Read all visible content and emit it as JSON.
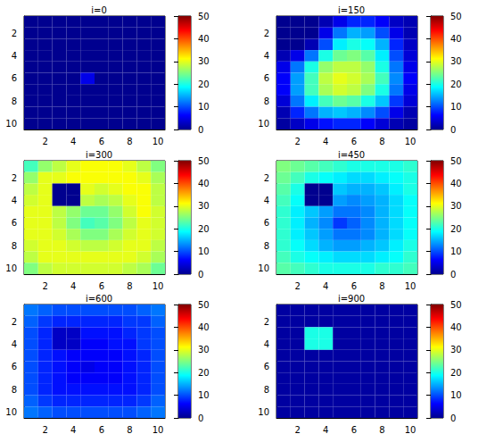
{
  "chart_data": [
    {
      "type": "heatmap",
      "title": "i=0",
      "xlim": [
        0.5,
        10.5
      ],
      "ylim": [
        0.5,
        10.5
      ],
      "xticks": [
        2,
        4,
        6,
        8,
        10
      ],
      "yticks": [
        2,
        4,
        6,
        8,
        10
      ],
      "colorbar": {
        "range": [
          0,
          50
        ],
        "ticks": [
          0,
          10,
          20,
          30,
          40,
          50
        ]
      },
      "cells": [
        [
          0,
          0,
          0,
          0,
          0,
          0,
          0,
          0,
          0,
          0
        ],
        [
          0,
          0,
          0,
          0,
          0,
          0,
          0,
          0,
          0,
          0
        ],
        [
          0,
          0,
          0,
          0,
          0,
          0,
          0,
          0,
          0,
          0
        ],
        [
          0,
          0,
          0,
          0,
          0,
          0,
          0,
          0,
          0,
          0
        ],
        [
          0,
          0,
          0,
          0,
          0,
          0,
          0,
          0,
          0,
          0
        ],
        [
          0,
          0,
          0,
          0,
          5,
          0,
          0,
          0,
          0,
          0
        ],
        [
          0,
          0,
          0,
          0,
          0,
          0,
          0,
          0,
          0,
          0
        ],
        [
          0,
          0,
          0,
          0,
          0,
          0,
          0,
          0,
          0,
          0
        ],
        [
          0,
          0,
          0,
          0,
          0,
          0,
          0,
          0,
          0,
          0
        ],
        [
          0,
          0,
          0,
          0,
          0,
          0,
          0,
          0,
          0,
          0
        ]
      ]
    },
    {
      "type": "heatmap",
      "title": "i=150",
      "xlim": [
        0.5,
        10.5
      ],
      "ylim": [
        0.5,
        10.5
      ],
      "xticks": [
        2,
        4,
        6,
        8,
        10
      ],
      "yticks": [
        2,
        4,
        6,
        8,
        10
      ],
      "colorbar": {
        "range": [
          0,
          50
        ],
        "ticks": [
          0,
          10,
          20,
          30,
          40,
          50
        ]
      },
      "cells": [
        [
          0,
          0,
          0,
          2,
          5,
          8,
          8,
          6,
          3,
          2
        ],
        [
          0,
          0,
          0,
          5,
          12,
          15,
          14,
          10,
          5,
          2
        ],
        [
          0,
          0,
          2,
          10,
          18,
          20,
          19,
          15,
          8,
          3
        ],
        [
          2,
          5,
          12,
          20,
          24,
          25,
          23,
          18,
          10,
          4
        ],
        [
          5,
          12,
          20,
          26,
          28,
          28,
          26,
          20,
          12,
          5
        ],
        [
          6,
          14,
          22,
          28,
          30,
          29,
          27,
          22,
          13,
          6
        ],
        [
          6,
          14,
          22,
          27,
          29,
          28,
          25,
          20,
          12,
          5
        ],
        [
          4,
          12,
          18,
          22,
          24,
          23,
          20,
          16,
          9,
          4
        ],
        [
          2,
          8,
          12,
          15,
          16,
          15,
          13,
          10,
          5,
          2
        ],
        [
          1,
          3,
          5,
          7,
          8,
          8,
          6,
          4,
          2,
          1
        ]
      ]
    },
    {
      "type": "heatmap",
      "title": "i=300",
      "xlim": [
        0.5,
        10.5
      ],
      "ylim": [
        0.5,
        10.5
      ],
      "xticks": [
        2,
        4,
        6,
        8,
        10
      ],
      "yticks": [
        2,
        4,
        6,
        8,
        10
      ],
      "colorbar": {
        "range": [
          0,
          50
        ],
        "ticks": [
          0,
          10,
          20,
          30,
          40,
          50
        ]
      },
      "cells": [
        [
          22,
          26,
          28,
          30,
          31,
          31,
          31,
          30,
          28,
          25
        ],
        [
          26,
          30,
          30,
          31,
          31,
          31,
          31,
          31,
          30,
          27
        ],
        [
          28,
          30,
          0,
          0,
          30,
          29,
          30,
          31,
          31,
          28
        ],
        [
          29,
          30,
          0,
          0,
          28,
          27,
          28,
          30,
          31,
          28
        ],
        [
          30,
          30,
          28,
          26,
          24,
          24,
          26,
          29,
          31,
          29
        ],
        [
          30,
          30,
          28,
          25,
          22,
          23,
          25,
          28,
          30,
          29
        ],
        [
          30,
          30,
          29,
          27,
          25,
          25,
          27,
          29,
          30,
          29
        ],
        [
          29,
          30,
          30,
          29,
          28,
          28,
          29,
          30,
          30,
          28
        ],
        [
          28,
          30,
          30,
          30,
          30,
          30,
          30,
          30,
          29,
          27
        ],
        [
          25,
          28,
          29,
          29,
          29,
          29,
          29,
          28,
          27,
          24
        ]
      ]
    },
    {
      "type": "heatmap",
      "title": "i=450",
      "xlim": [
        0.5,
        10.5
      ],
      "ylim": [
        0.5,
        10.5
      ],
      "xticks": [
        2,
        4,
        6,
        8,
        10
      ],
      "yticks": [
        2,
        4,
        6,
        8,
        10
      ],
      "colorbar": {
        "range": [
          0,
          50
        ],
        "ticks": [
          0,
          10,
          20,
          30,
          40,
          50
        ]
      },
      "cells": [
        [
          25,
          24,
          23,
          22,
          21,
          20,
          20,
          20,
          20,
          21
        ],
        [
          24,
          22,
          20,
          19,
          18,
          17,
          17,
          18,
          19,
          20
        ],
        [
          23,
          20,
          0,
          0,
          16,
          15,
          15,
          16,
          18,
          20
        ],
        [
          22,
          19,
          0,
          0,
          14,
          13,
          14,
          15,
          17,
          19
        ],
        [
          21,
          18,
          16,
          14,
          12,
          12,
          13,
          15,
          17,
          19
        ],
        [
          21,
          18,
          15,
          13,
          9,
          11,
          13,
          15,
          17,
          19
        ],
        [
          21,
          18,
          16,
          14,
          12,
          12,
          13,
          15,
          17,
          19
        ],
        [
          21,
          19,
          17,
          15,
          14,
          14,
          15,
          16,
          18,
          20
        ],
        [
          22,
          20,
          19,
          18,
          17,
          17,
          17,
          18,
          19,
          21
        ],
        [
          23,
          22,
          21,
          20,
          20,
          20,
          20,
          21,
          21,
          22
        ]
      ]
    },
    {
      "type": "heatmap",
      "title": "i=600",
      "xlim": [
        0.5,
        10.5
      ],
      "ylim": [
        0.5,
        10.5
      ],
      "xticks": [
        2,
        4,
        6,
        8,
        10
      ],
      "yticks": [
        2,
        4,
        6,
        8,
        10
      ],
      "colorbar": {
        "range": [
          0,
          50
        ],
        "ticks": [
          0,
          10,
          20,
          30,
          40,
          50
        ]
      },
      "cells": [
        [
          12,
          11,
          10,
          10,
          10,
          10,
          10,
          10,
          11,
          12
        ],
        [
          11,
          9,
          8,
          8,
          8,
          8,
          8,
          9,
          9,
          11
        ],
        [
          10,
          8,
          3,
          3,
          7,
          7,
          7,
          8,
          9,
          10
        ],
        [
          10,
          8,
          3,
          3,
          6,
          6,
          7,
          7,
          9,
          10
        ],
        [
          10,
          8,
          7,
          6,
          6,
          6,
          6,
          7,
          8,
          10
        ],
        [
          10,
          8,
          7,
          6,
          5,
          6,
          6,
          7,
          8,
          10
        ],
        [
          10,
          8,
          7,
          6,
          6,
          6,
          6,
          7,
          8,
          10
        ],
        [
          10,
          8,
          7,
          7,
          7,
          7,
          7,
          7,
          8,
          10
        ],
        [
          11,
          9,
          8,
          8,
          8,
          8,
          8,
          8,
          9,
          11
        ],
        [
          12,
          11,
          10,
          10,
          10,
          10,
          10,
          10,
          11,
          12
        ]
      ]
    },
    {
      "type": "heatmap",
      "title": "i=900",
      "xlim": [
        0.5,
        10.5
      ],
      "ylim": [
        0.5,
        10.5
      ],
      "xticks": [
        2,
        4,
        6,
        8,
        10
      ],
      "yticks": [
        2,
        4,
        6,
        8,
        10
      ],
      "colorbar": {
        "range": [
          0,
          50
        ],
        "ticks": [
          0,
          10,
          20,
          30,
          40,
          50
        ]
      },
      "cells": [
        [
          1,
          1,
          1,
          1,
          1,
          1,
          1,
          1,
          1,
          1
        ],
        [
          1,
          1,
          1,
          1,
          1,
          1,
          1,
          1,
          1,
          1
        ],
        [
          1,
          1,
          20,
          20,
          1,
          1,
          1,
          1,
          1,
          1
        ],
        [
          1,
          1,
          20,
          20,
          1,
          1,
          1,
          1,
          1,
          1
        ],
        [
          1,
          1,
          1,
          1,
          1,
          1,
          1,
          1,
          1,
          1
        ],
        [
          1,
          1,
          1,
          1,
          1,
          1,
          1,
          1,
          1,
          1
        ],
        [
          1,
          1,
          1,
          1,
          1,
          1,
          1,
          1,
          1,
          1
        ],
        [
          1,
          1,
          1,
          1,
          1,
          1,
          1,
          1,
          1,
          1
        ],
        [
          1,
          1,
          1,
          1,
          1,
          1,
          1,
          1,
          1,
          1
        ],
        [
          1,
          1,
          1,
          1,
          1,
          1,
          1,
          1,
          1,
          1
        ]
      ]
    }
  ]
}
